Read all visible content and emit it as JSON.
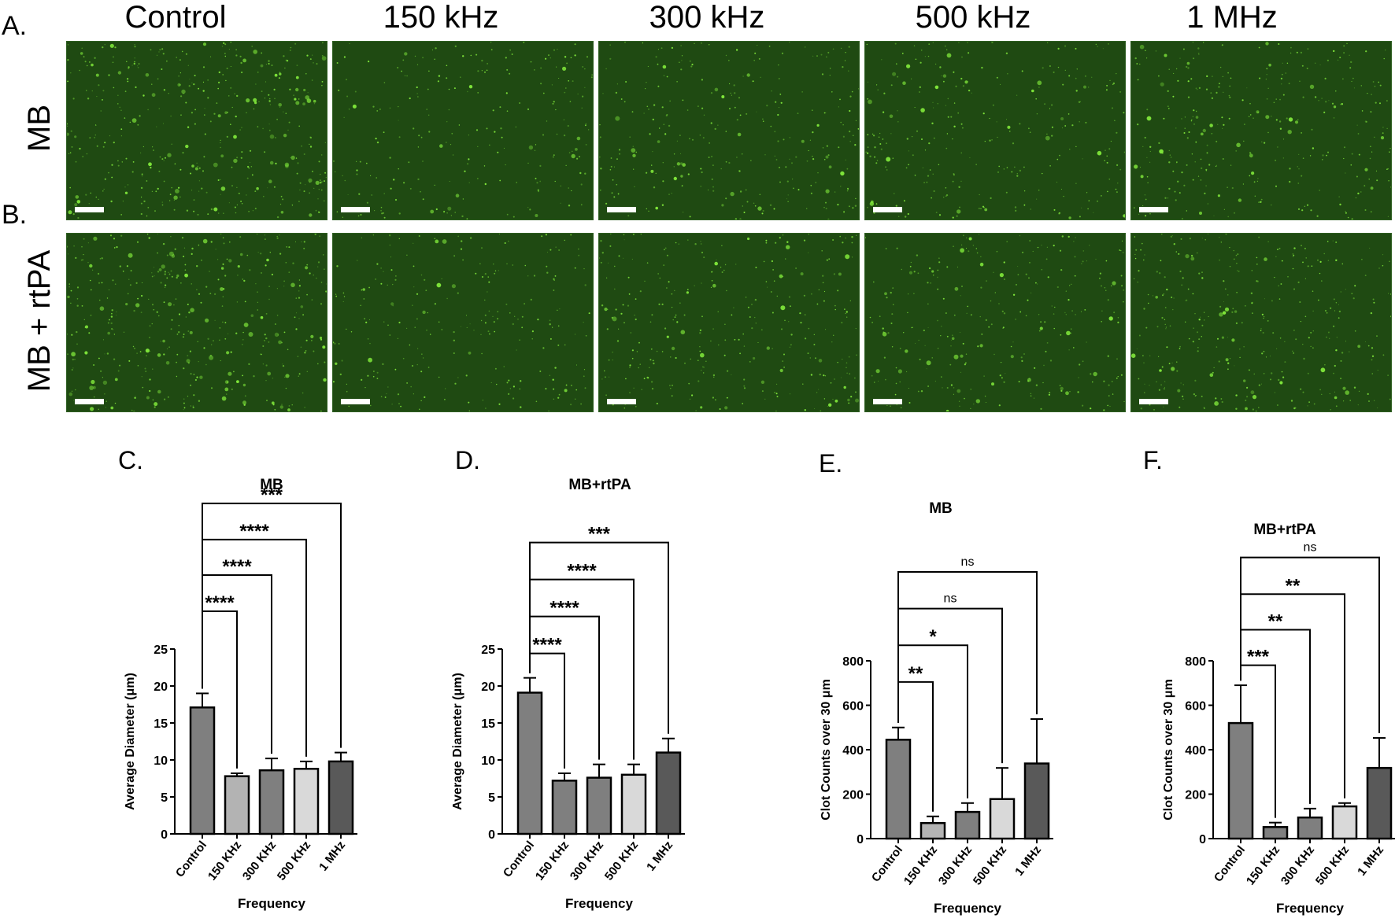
{
  "panel_labels": {
    "A": "A.",
    "B": "B.",
    "C": "C.",
    "D": "D.",
    "E": "E.",
    "F": "F."
  },
  "column_titles": [
    "Control",
    "150 kHz",
    "300 kHz",
    "500 kHz",
    "1 MHz"
  ],
  "row_labels": [
    "MB",
    "MB + rtPA"
  ],
  "colors": {
    "micrograph_bg": "#1f4a12",
    "particle": "#7fe63a",
    "scale_bar": "#ffffff"
  },
  "micrograph_particle_density": [
    [
      1.0,
      0.25,
      0.45,
      0.4,
      0.6
    ],
    [
      1.0,
      0.3,
      0.55,
      0.5,
      0.7
    ]
  ],
  "chart_data": [
    {
      "type": "bar",
      "panel": "C.",
      "title": "MB",
      "xlabel": "Frequency",
      "ylabel": "Average Diameter (μm)",
      "categories": [
        "Control",
        "150 KHz",
        "300 KHz",
        "500 KHz",
        "1 MHz"
      ],
      "values": [
        17.1,
        7.8,
        8.6,
        8.8,
        9.8
      ],
      "errors": [
        1.9,
        0.4,
        1.6,
        1.0,
        1.2
      ],
      "bar_colors": [
        "#7f7f7f",
        "#b3b3b3",
        "#7f7f7f",
        "#d9d9d9",
        "#595959"
      ],
      "ylim": [
        0,
        25
      ],
      "yticks": [
        0,
        5,
        10,
        15,
        20,
        25
      ],
      "significance": [
        {
          "from": 0,
          "to": 1,
          "label": "****",
          "level": 30.1
        },
        {
          "from": 0,
          "to": 2,
          "label": "****",
          "level": 35.0
        },
        {
          "from": 0,
          "to": 3,
          "label": "****",
          "level": 39.8
        },
        {
          "from": 0,
          "to": 4,
          "label": "***",
          "level": 44.7
        }
      ]
    },
    {
      "type": "bar",
      "panel": "D.",
      "title": "MB+rtPA",
      "xlabel": "Frequency",
      "ylabel": "Average Diameter (μm)",
      "categories": [
        "Control",
        "150 KHz",
        "300 KHz",
        "500 KHz",
        "1 MHz"
      ],
      "values": [
        19.1,
        7.2,
        7.6,
        8.0,
        11.0
      ],
      "errors": [
        2.0,
        1.0,
        1.8,
        1.4,
        1.9
      ],
      "bar_colors": [
        "#7f7f7f",
        "#7f7f7f",
        "#7f7f7f",
        "#d9d9d9",
        "#595959"
      ],
      "ylim": [
        0,
        25
      ],
      "yticks": [
        0,
        5,
        10,
        15,
        20,
        25
      ],
      "significance": [
        {
          "from": 0,
          "to": 1,
          "label": "****",
          "level": 24.4
        },
        {
          "from": 0,
          "to": 2,
          "label": "****",
          "level": 29.4
        },
        {
          "from": 0,
          "to": 3,
          "label": "****",
          "level": 34.4
        },
        {
          "from": 0,
          "to": 4,
          "label": "***",
          "level": 39.4
        }
      ]
    },
    {
      "type": "bar",
      "panel": "E.",
      "title": "MB",
      "xlabel": "Frequency",
      "ylabel": "Clot Counts over 30 μm",
      "categories": [
        "Control",
        "150 KHz",
        "300 KHz",
        "500 KHz",
        "1 MHz"
      ],
      "values": [
        445,
        70,
        120,
        178,
        338
      ],
      "errors": [
        55,
        30,
        40,
        140,
        200
      ],
      "bar_colors": [
        "#7f7f7f",
        "#b3b3b3",
        "#7f7f7f",
        "#d9d9d9",
        "#595959"
      ],
      "ylim": [
        0,
        800
      ],
      "yticks": [
        0,
        200,
        400,
        600,
        800
      ],
      "significance": [
        {
          "from": 0,
          "to": 1,
          "label": "**",
          "level": 705
        },
        {
          "from": 0,
          "to": 2,
          "label": "*",
          "level": 870
        },
        {
          "from": 0,
          "to": 3,
          "label": "ns",
          "level": 1035
        },
        {
          "from": 0,
          "to": 4,
          "label": "ns",
          "level": 1200
        }
      ]
    },
    {
      "type": "bar",
      "panel": "F.",
      "title": "MB+rtPA",
      "xlabel": "Frequency",
      "ylabel": "Clot Counts over 30 μm",
      "categories": [
        "Control",
        "150 KHz",
        "300 KHz",
        "500 KHz",
        "1 MHz"
      ],
      "values": [
        520,
        52,
        95,
        145,
        318
      ],
      "errors": [
        170,
        20,
        40,
        15,
        135
      ],
      "bar_colors": [
        "#7f7f7f",
        "#7f7f7f",
        "#7f7f7f",
        "#d9d9d9",
        "#595959"
      ],
      "ylim": [
        0,
        800
      ],
      "yticks": [
        0,
        200,
        400,
        600,
        800
      ],
      "significance": [
        {
          "from": 0,
          "to": 1,
          "label": "***",
          "level": 780
        },
        {
          "from": 0,
          "to": 2,
          "label": "**",
          "level": 940
        },
        {
          "from": 0,
          "to": 3,
          "label": "**",
          "level": 1100
        },
        {
          "from": 0,
          "to": 4,
          "label": "ns",
          "level": 1265
        }
      ]
    }
  ]
}
